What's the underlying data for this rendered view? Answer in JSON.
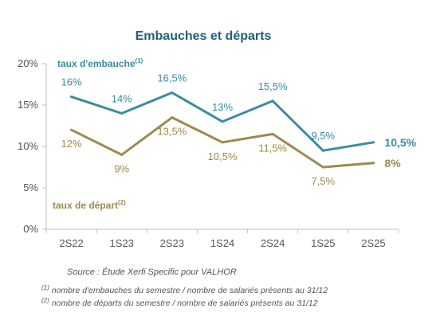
{
  "chart_data": {
    "type": "line",
    "title": "Embauches et départs",
    "categories": [
      "2S22",
      "1S23",
      "2S23",
      "1S24",
      "2S24",
      "1S25",
      "2S25"
    ],
    "y_ticks": [
      "0%",
      "5%",
      "10%",
      "15%",
      "20%"
    ],
    "ylim": [
      0,
      20
    ],
    "grid": false,
    "series": [
      {
        "name": "taux d'embauche",
        "sup": "(1)",
        "color": "#3a8ca0",
        "values": [
          16,
          14,
          16.5,
          13,
          15.5,
          9.5,
          10.5
        ],
        "labels": [
          "16%",
          "14%",
          "16,5%",
          "13%",
          "15,5%",
          "9,5%",
          "10,5%"
        ]
      },
      {
        "name": "taux de départ",
        "sup": "(2)",
        "color": "#9a8b4e",
        "values": [
          12,
          9,
          13.5,
          10.5,
          11.5,
          7.5,
          8
        ],
        "labels": [
          "12%",
          "9%",
          "13,5%",
          "10,5%",
          "11,5%",
          "7,5%",
          "8%"
        ]
      }
    ]
  },
  "source": "Source : Étude Xerfi Specific pour VALHOR",
  "notes": [
    {
      "mark": "(1)",
      "text": " nombre d'embauches du semestre / nombre de salariés présents au 31/12"
    },
    {
      "mark": "(2)",
      "text": " nombre de départs du semestre / nombre de salariés présents au 31/12"
    }
  ]
}
